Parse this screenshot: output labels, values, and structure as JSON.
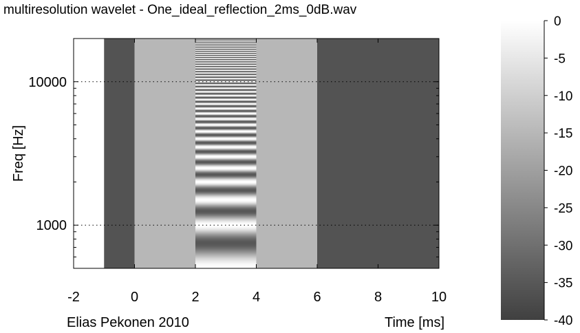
{
  "chart_data": {
    "type": "heatmap",
    "title": "multiresolution wavelet -   One_ideal_reflection_2ms_0dB.wav",
    "xlabel": "Time [ms]",
    "ylabel": "Freq [Hz]",
    "credit": "Elias Pekonen 2010",
    "xlim": [
      -2,
      10
    ],
    "ylim": [
      500,
      20000
    ],
    "yscale": "log",
    "x_ticks": [
      -2,
      0,
      2,
      4,
      6,
      8,
      10
    ],
    "x_tick_labels": [
      "-2",
      "0",
      "2",
      "4",
      "6",
      "8",
      "10"
    ],
    "y_ticks": [
      1000,
      10000
    ],
    "y_tick_labels": [
      "1000",
      "10000"
    ],
    "grid": "dotted at major y ticks",
    "colorbar": {
      "range": [
        -40,
        0
      ],
      "ticks": [
        0,
        -5,
        -10,
        -15,
        -20,
        -25,
        -30,
        -35,
        -40
      ],
      "tick_labels": [
        "0",
        "-5",
        "-10",
        "-15",
        "-20",
        "-25",
        "-30",
        "-35",
        "-40"
      ],
      "colormap": "gray"
    },
    "regions": [
      {
        "t_start": -2,
        "t_end": -1,
        "level_db": 0,
        "pattern": "flat"
      },
      {
        "t_start": -1,
        "t_end": 0,
        "level_db": -36,
        "pattern": "flat"
      },
      {
        "t_start": 0,
        "t_end": 2,
        "level_db": -15,
        "pattern": "flat"
      },
      {
        "t_start": 2,
        "t_end": 4,
        "level_db": -15,
        "pattern": "frequency ripple, 2 ms reflection"
      },
      {
        "t_start": 4,
        "t_end": 6,
        "level_db": -15,
        "pattern": "flat"
      },
      {
        "t_start": 6,
        "t_end": 10,
        "level_db": -36,
        "pattern": "flat"
      }
    ]
  }
}
